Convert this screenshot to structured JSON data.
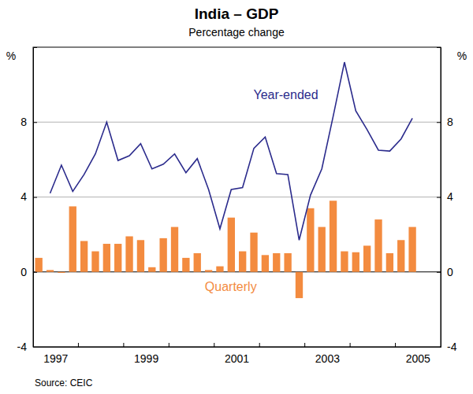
{
  "chart_data": {
    "type": "bar",
    "title": "India – GDP",
    "subtitle": "Percentage change",
    "y_label": "%",
    "y2_label": "%",
    "source": "Source: CEIC",
    "categories": [
      null,
      "1997",
      null,
      null,
      null,
      null,
      null,
      null,
      null,
      "1999",
      null,
      null,
      null,
      null,
      null,
      null,
      null,
      "2001",
      null,
      null,
      null,
      null,
      null,
      null,
      null,
      "2003",
      null,
      null,
      null,
      null,
      null,
      null,
      null,
      "2005",
      null,
      null
    ],
    "series": [
      {
        "name": "Quarterly",
        "type": "bar",
        "color": "#f38b3f",
        "values": [
          0.75,
          0.1,
          -0.05,
          3.5,
          1.65,
          1.1,
          1.5,
          1.5,
          1.9,
          1.7,
          0.25,
          1.8,
          2.4,
          0.75,
          1.0,
          0.1,
          0.3,
          2.9,
          1.1,
          2.1,
          0.9,
          1.0,
          1.0,
          -1.4,
          3.4,
          2.4,
          3.8,
          1.1,
          1.05,
          1.4,
          2.8,
          1.0,
          1.7,
          2.4,
          null,
          null
        ]
      },
      {
        "name": "Year-ended",
        "type": "line",
        "color": "#2b2b8c",
        "values": [
          null,
          4.2,
          5.7,
          4.3,
          5.2,
          6.3,
          8,
          5.95,
          6.2,
          6.85,
          5.5,
          5.75,
          6.3,
          5.3,
          6.05,
          4.4,
          2.3,
          4.4,
          4.5,
          6.6,
          7.2,
          5.25,
          5.2,
          1.7,
          4.1,
          5.5,
          8.3,
          11.2,
          8.6,
          7.6,
          6.5,
          6.45,
          7.1,
          8.2,
          null,
          null
        ]
      }
    ],
    "ylim": [
      -4,
      12
    ],
    "yticks": [
      -4,
      0,
      4,
      8
    ],
    "y2lim": [
      -4,
      12
    ],
    "y2ticks": [
      -4,
      0,
      4,
      8
    ],
    "grid": true
  }
}
